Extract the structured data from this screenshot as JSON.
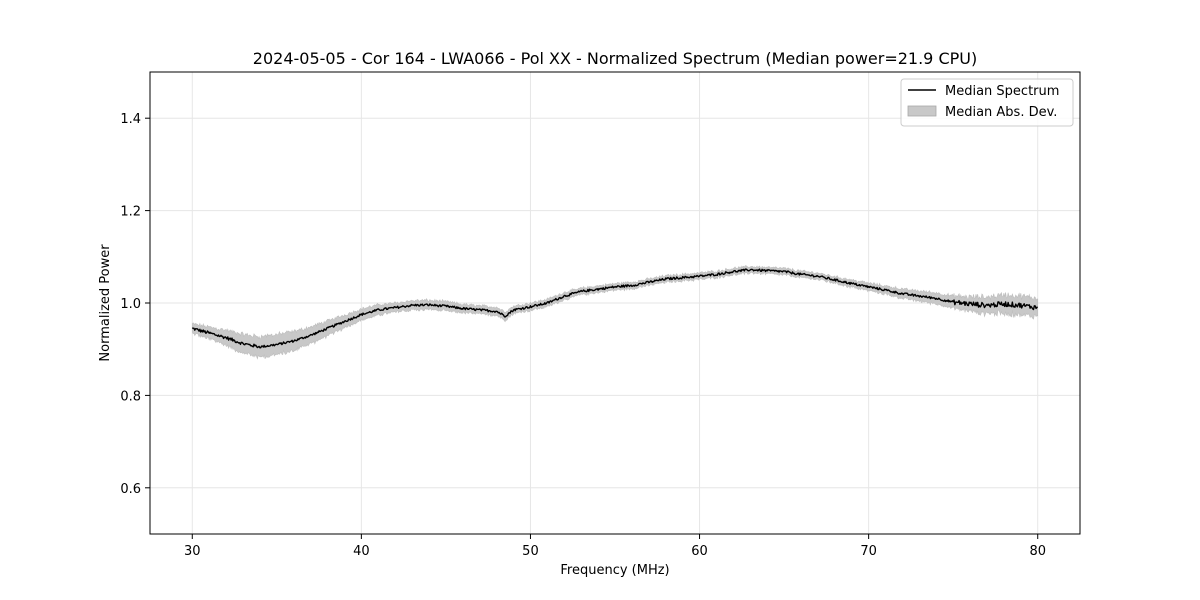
{
  "chart_data": {
    "type": "line",
    "title": "2024-05-05 - Cor 164 - LWA066 - Pol XX - Normalized Spectrum (Median power=21.9 CPU)",
    "xlabel": "Frequency (MHz)",
    "ylabel": "Normalized Power",
    "xlim": [
      27.5,
      82.5
    ],
    "ylim": [
      0.5,
      1.5
    ],
    "xticks": [
      30,
      40,
      50,
      60,
      70,
      80
    ],
    "yticks": [
      0.6,
      0.8,
      1.0,
      1.2,
      1.4
    ],
    "xtick_labels": [
      "30",
      "40",
      "50",
      "60",
      "70",
      "80"
    ],
    "ytick_labels": [
      "0.6",
      "0.8",
      "1.0",
      "1.2",
      "1.4"
    ],
    "grid": true,
    "legend_position": "top-right",
    "legend": [
      "Median Spectrum",
      "Median Abs. Dev."
    ],
    "series": [
      {
        "name": "Median Spectrum",
        "color": "#000000",
        "x": [
          30,
          31,
          32,
          33,
          34,
          35,
          36,
          37,
          38,
          39,
          40,
          41,
          42,
          43,
          44,
          45,
          46,
          47,
          48,
          48.5,
          49,
          50,
          51,
          52,
          53,
          54,
          55,
          56,
          57,
          58,
          59,
          60,
          61,
          62,
          63,
          64,
          65,
          66,
          67,
          68,
          69,
          70,
          71,
          72,
          73,
          74,
          75,
          76,
          77,
          78,
          79,
          80
        ],
        "y": [
          0.945,
          0.935,
          0.925,
          0.912,
          0.905,
          0.91,
          0.918,
          0.93,
          0.945,
          0.96,
          0.975,
          0.985,
          0.99,
          0.995,
          0.996,
          0.993,
          0.988,
          0.985,
          0.982,
          0.972,
          0.985,
          0.992,
          1.0,
          1.015,
          1.025,
          1.03,
          1.035,
          1.038,
          1.045,
          1.052,
          1.055,
          1.058,
          1.062,
          1.068,
          1.072,
          1.07,
          1.068,
          1.062,
          1.058,
          1.05,
          1.042,
          1.035,
          1.028,
          1.02,
          1.015,
          1.01,
          1.002,
          0.998,
          0.995,
          0.998,
          0.995,
          0.99
        ]
      },
      {
        "name": "Median Abs. Dev.",
        "color": "#c8c8c8",
        "x": [
          30,
          31,
          32,
          33,
          34,
          35,
          36,
          37,
          38,
          39,
          40,
          41,
          42,
          43,
          44,
          45,
          46,
          47,
          48,
          48.5,
          49,
          50,
          51,
          52,
          53,
          54,
          55,
          56,
          57,
          58,
          59,
          60,
          61,
          62,
          63,
          64,
          65,
          66,
          67,
          68,
          69,
          70,
          71,
          72,
          73,
          74,
          75,
          76,
          77,
          78,
          79,
          80
        ],
        "dev": [
          0.01,
          0.013,
          0.016,
          0.02,
          0.022,
          0.022,
          0.02,
          0.018,
          0.016,
          0.014,
          0.012,
          0.011,
          0.01,
          0.01,
          0.01,
          0.01,
          0.009,
          0.009,
          0.009,
          0.009,
          0.008,
          0.008,
          0.008,
          0.008,
          0.007,
          0.007,
          0.007,
          0.007,
          0.007,
          0.007,
          0.007,
          0.007,
          0.007,
          0.007,
          0.007,
          0.007,
          0.007,
          0.007,
          0.007,
          0.007,
          0.008,
          0.008,
          0.009,
          0.01,
          0.011,
          0.012,
          0.013,
          0.015,
          0.018,
          0.02,
          0.02,
          0.02
        ]
      }
    ]
  }
}
